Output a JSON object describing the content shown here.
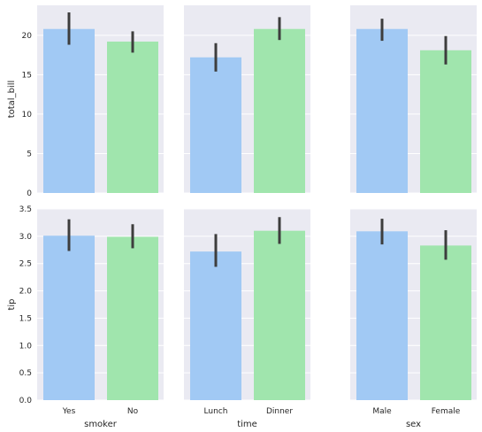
{
  "chart_data": [
    {
      "type": "bar",
      "xlabel": "",
      "ylabel": "total_bill",
      "categories": [
        "Yes",
        "No"
      ],
      "values": [
        20.8,
        19.2
      ],
      "ci": [
        [
          18.8,
          22.9
        ],
        [
          17.8,
          20.5
        ]
      ],
      "ylim": [
        0,
        23.8
      ],
      "yticks": [
        0,
        5,
        10,
        15,
        20
      ]
    },
    {
      "type": "bar",
      "xlabel": "",
      "ylabel": "",
      "categories": [
        "Lunch",
        "Dinner"
      ],
      "values": [
        17.2,
        20.8
      ],
      "ci": [
        [
          15.4,
          19.0
        ],
        [
          19.4,
          22.3
        ]
      ],
      "ylim": [
        0,
        23.8
      ],
      "yticks": [
        0,
        5,
        10,
        15,
        20
      ]
    },
    {
      "type": "bar",
      "xlabel": "",
      "ylabel": "",
      "categories": [
        "Male",
        "Female"
      ],
      "values": [
        20.8,
        18.1
      ],
      "ci": [
        [
          19.3,
          22.1
        ],
        [
          16.3,
          19.9
        ]
      ],
      "ylim": [
        0,
        23.8
      ],
      "yticks": [
        0,
        5,
        10,
        15,
        20
      ]
    },
    {
      "type": "bar",
      "xlabel": "smoker",
      "ylabel": "tip",
      "categories": [
        "Yes",
        "No"
      ],
      "values": [
        3.01,
        2.99
      ],
      "ci": [
        [
          2.73,
          3.31
        ],
        [
          2.78,
          3.22
        ]
      ],
      "ylim": [
        0,
        3.5
      ],
      "yticks": [
        0.0,
        0.5,
        1.0,
        1.5,
        2.0,
        2.5,
        3.0,
        3.5
      ]
    },
    {
      "type": "bar",
      "xlabel": "time",
      "ylabel": "",
      "categories": [
        "Lunch",
        "Dinner"
      ],
      "values": [
        2.72,
        3.1
      ],
      "ci": [
        [
          2.44,
          3.04
        ],
        [
          2.86,
          3.35
        ]
      ],
      "ylim": [
        0,
        3.5
      ],
      "yticks": [
        0.0,
        0.5,
        1.0,
        1.5,
        2.0,
        2.5,
        3.0,
        3.5
      ]
    },
    {
      "type": "bar",
      "xlabel": "sex",
      "ylabel": "",
      "categories": [
        "Male",
        "Female"
      ],
      "values": [
        3.09,
        2.83
      ],
      "ci": [
        [
          2.85,
          3.32
        ],
        [
          2.57,
          3.11
        ]
      ],
      "ylim": [
        0,
        3.5
      ],
      "yticks": [
        0.0,
        0.5,
        1.0,
        1.5,
        2.0,
        2.5,
        3.0,
        3.5
      ]
    }
  ],
  "colors": {
    "bar_first": "#a1c9f4",
    "bar_second": "#a0e5ad",
    "error_bar": "#3d3d3d",
    "panel_background": "#eaeaf2",
    "grid": "#ffffff"
  },
  "grid": true
}
